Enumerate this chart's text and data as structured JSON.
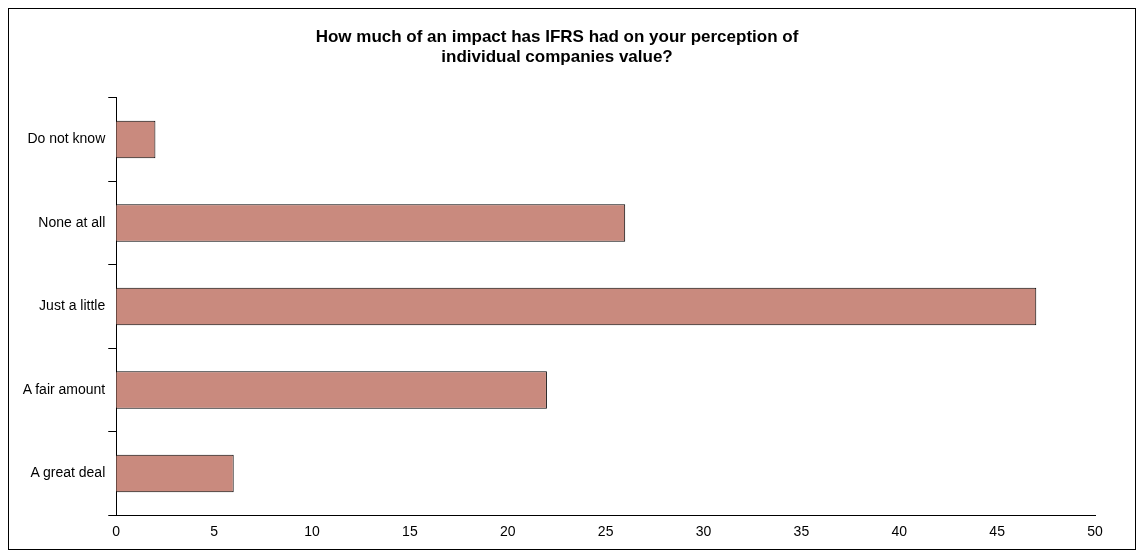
{
  "chart_data": {
    "type": "bar",
    "orientation": "horizontal",
    "title": "How much of an impact has IFRS had on your perception of individual companies value?",
    "categories": [
      "Do not know",
      "None at all",
      "Just a little",
      "A fair amount",
      "A great deal"
    ],
    "values": [
      2,
      26,
      47,
      22,
      6
    ],
    "color": "#c98a7e",
    "xlim": [
      0,
      50
    ],
    "xticks": [
      0,
      5,
      10,
      15,
      20,
      25,
      30,
      35,
      40,
      45,
      50
    ],
    "grid": false,
    "legend": false
  }
}
